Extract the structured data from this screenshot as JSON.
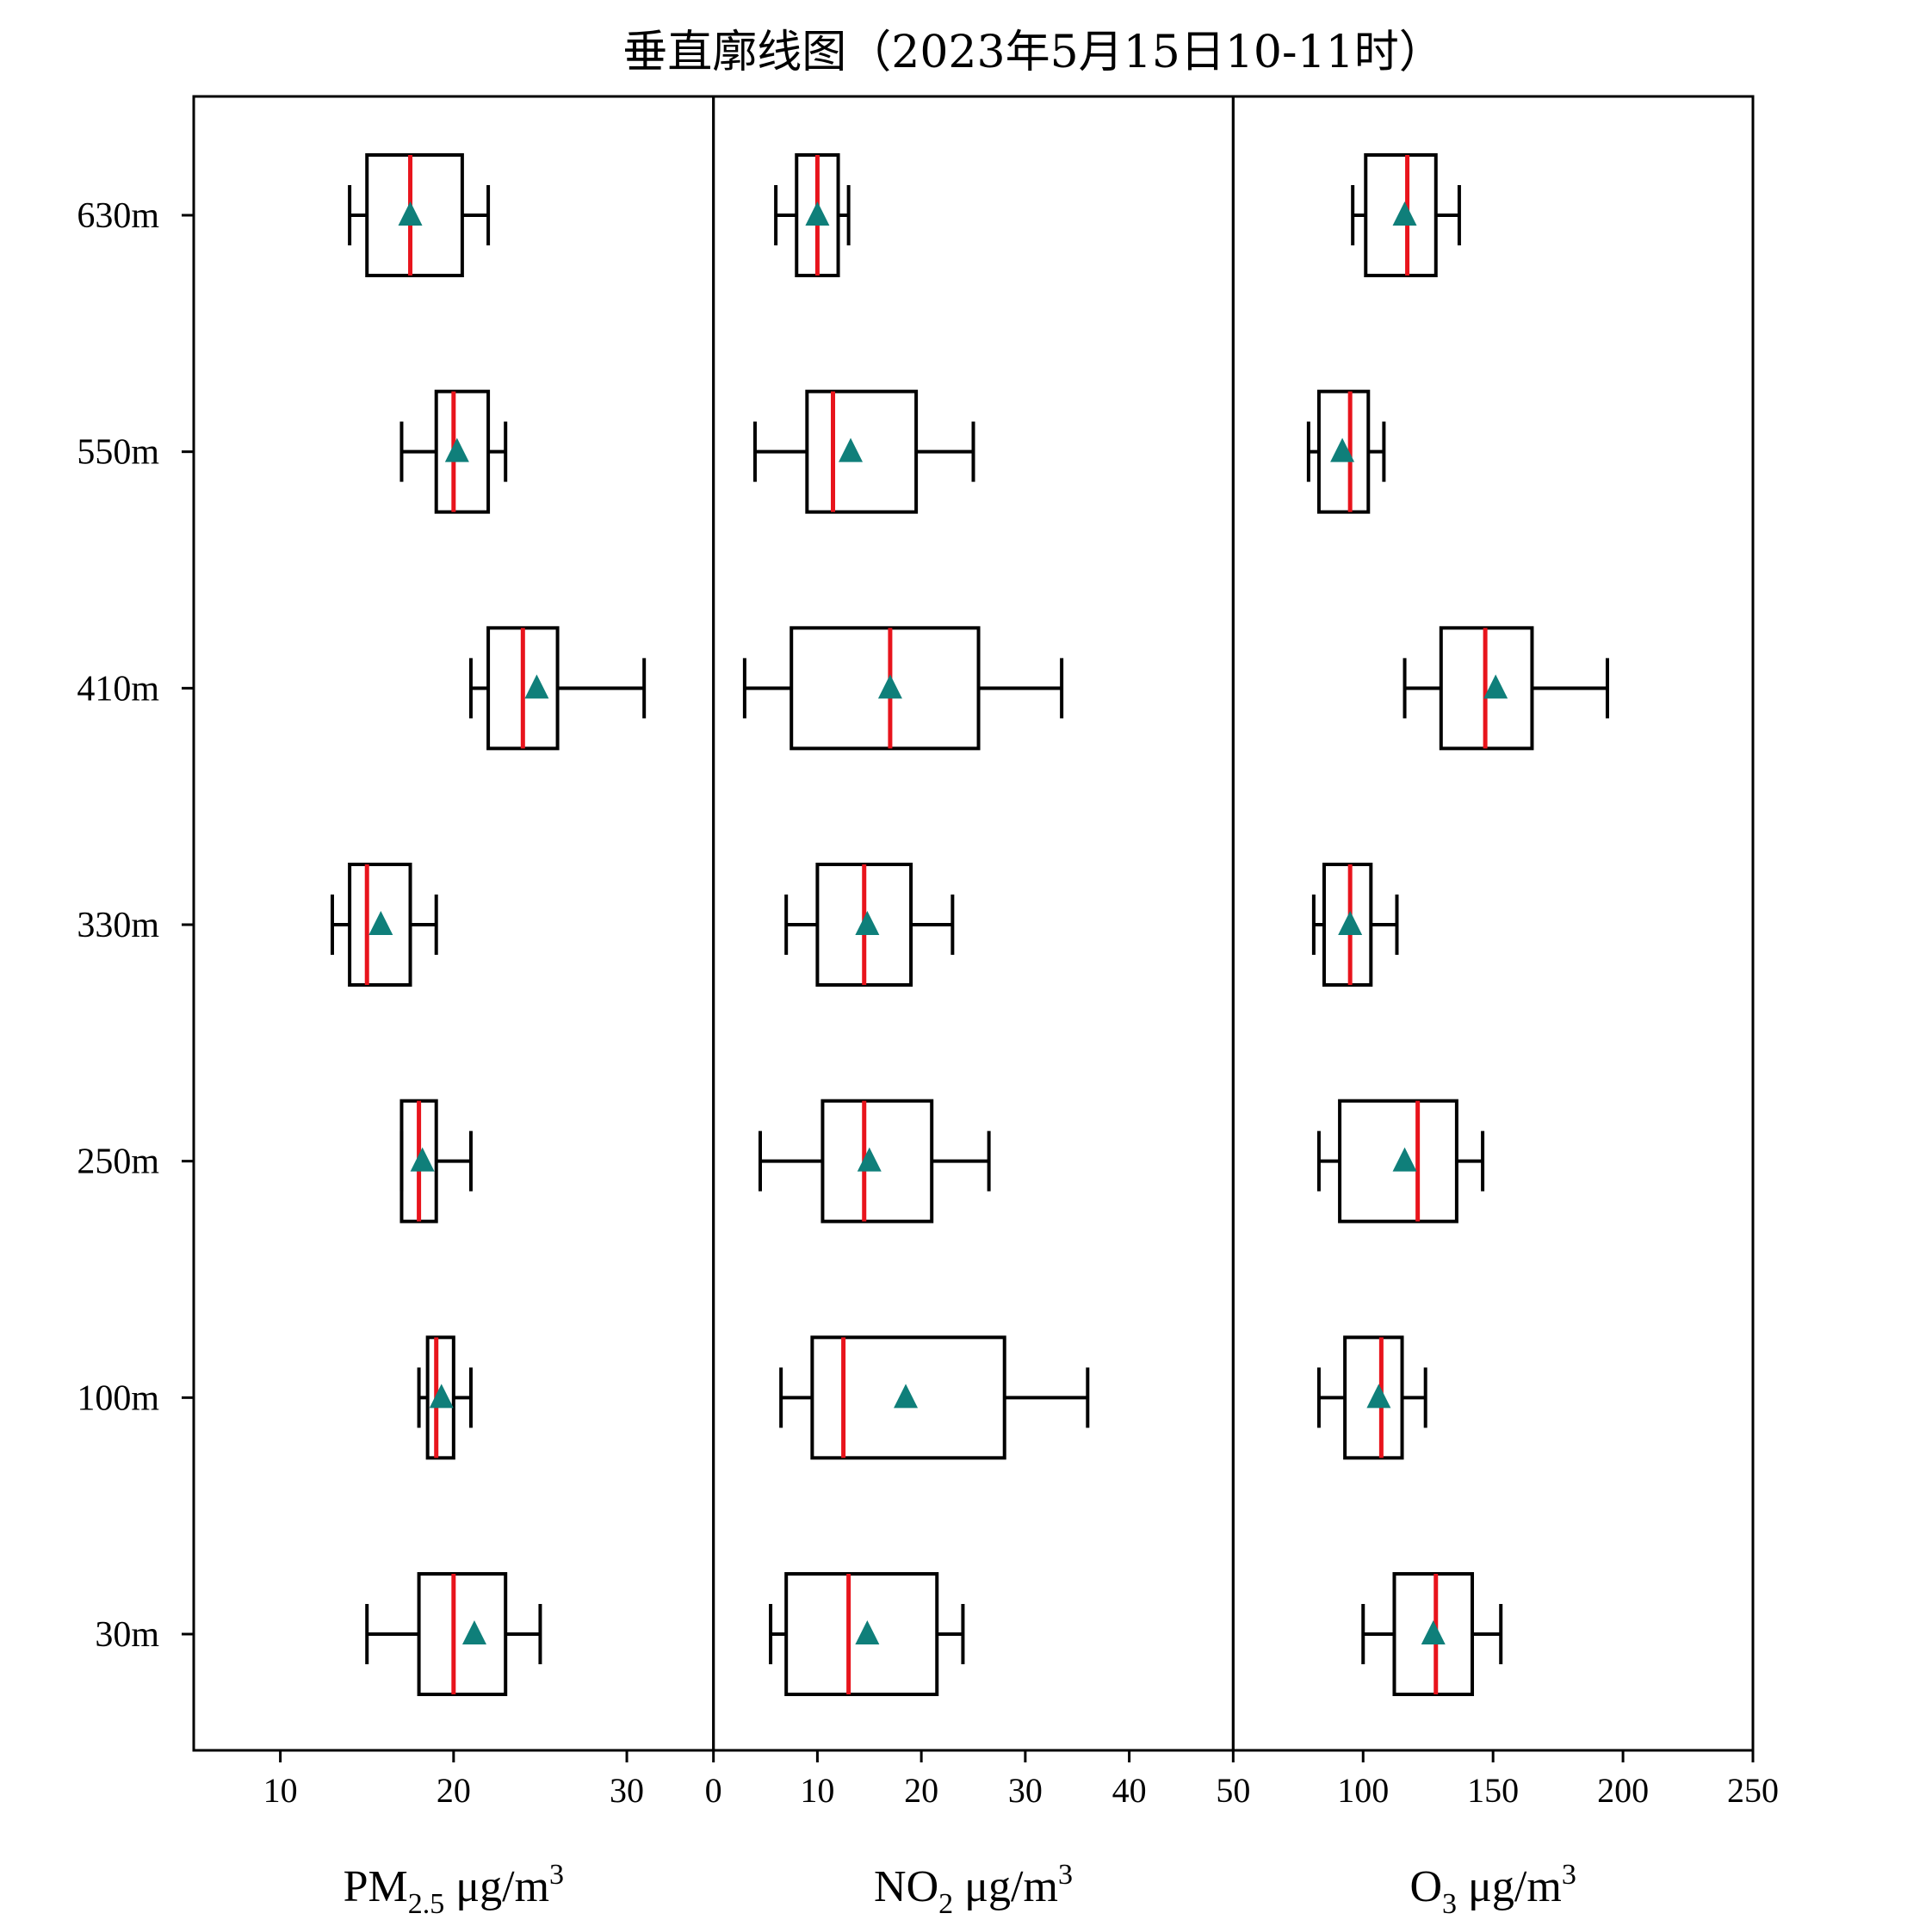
{
  "chart_data": {
    "type": "box",
    "orientation": "horizontal",
    "title": "垂直廓线图（2023年5月15日10-11时）",
    "categories": [
      "630m",
      "550m",
      "410m",
      "330m",
      "250m",
      "100m",
      "30m"
    ],
    "colors": {
      "box": "#000000",
      "median": "#e8141c",
      "mean_marker": "#0f7f7a"
    },
    "panels": [
      {
        "name": "PM2.5",
        "xlabel": {
          "base": "PM",
          "sub": "2.5",
          "sup": "",
          "unit_base": " μg/m",
          "unit_sup": "3"
        },
        "xlim": [
          5,
          35
        ],
        "xticks": [
          10,
          20,
          30
        ],
        "xtick_labels": [
          "10",
          "20",
          "30"
        ],
        "boxes": [
          {
            "category": "630m",
            "whisker_low": 14,
            "q1": 15,
            "median": 17.5,
            "q3": 20.5,
            "whisker_high": 22,
            "mean": 17.5
          },
          {
            "category": "550m",
            "whisker_low": 17,
            "q1": 19,
            "median": 20,
            "q3": 22,
            "whisker_high": 23,
            "mean": 20.2
          },
          {
            "category": "410m",
            "whisker_low": 21,
            "q1": 22,
            "median": 24,
            "q3": 26,
            "whisker_high": 31,
            "mean": 24.8
          },
          {
            "category": "330m",
            "whisker_low": 13,
            "q1": 14,
            "median": 15,
            "q3": 17.5,
            "whisker_high": 19,
            "mean": 15.8
          },
          {
            "category": "250m",
            "whisker_low": 17,
            "q1": 17,
            "median": 18,
            "q3": 19,
            "whisker_high": 21,
            "mean": 18.2
          },
          {
            "category": "100m",
            "whisker_low": 18,
            "q1": 18.5,
            "median": 19,
            "q3": 20,
            "whisker_high": 21,
            "mean": 19.3
          },
          {
            "category": "30m",
            "whisker_low": 15,
            "q1": 18,
            "median": 20,
            "q3": 23,
            "whisker_high": 25,
            "mean": 21.2
          }
        ]
      },
      {
        "name": "NO2",
        "xlabel": {
          "base": "NO",
          "sub": "2",
          "sup": "",
          "unit_base": " μg/m",
          "unit_sup": "3"
        },
        "xlim": [
          0,
          50
        ],
        "xticks": [
          0,
          10,
          20,
          30,
          40
        ],
        "xtick_labels": [
          "0",
          "10",
          "20",
          "30",
          "40"
        ],
        "boxes": [
          {
            "category": "630m",
            "whisker_low": 6,
            "q1": 8,
            "median": 10,
            "q3": 12,
            "whisker_high": 13,
            "mean": 10
          },
          {
            "category": "550m",
            "whisker_low": 4,
            "q1": 9,
            "median": 11.5,
            "q3": 19.5,
            "whisker_high": 25,
            "mean": 13.2
          },
          {
            "category": "410m",
            "whisker_low": 3,
            "q1": 7.5,
            "median": 17,
            "q3": 25.5,
            "whisker_high": 33.5,
            "mean": 17
          },
          {
            "category": "330m",
            "whisker_low": 7,
            "q1": 10,
            "median": 14.5,
            "q3": 19,
            "whisker_high": 23,
            "mean": 14.8
          },
          {
            "category": "250m",
            "whisker_low": 4.5,
            "q1": 10.5,
            "median": 14.5,
            "q3": 21,
            "whisker_high": 26.5,
            "mean": 15
          },
          {
            "category": "100m",
            "whisker_low": 6.5,
            "q1": 9.5,
            "median": 12.5,
            "q3": 28,
            "whisker_high": 36,
            "mean": 18.5
          },
          {
            "category": "30m",
            "whisker_low": 5.5,
            "q1": 7,
            "median": 13,
            "q3": 21.5,
            "whisker_high": 24,
            "mean": 14.8
          }
        ]
      },
      {
        "name": "O3",
        "xlabel": {
          "base": "O",
          "sub": "3",
          "sup": "",
          "unit_base": " μg/m",
          "unit_sup": "3"
        },
        "xlim": [
          50,
          250
        ],
        "xticks": [
          50,
          100,
          150,
          200,
          250
        ],
        "xtick_labels": [
          "50",
          "100",
          "150",
          "200",
          "250"
        ],
        "boxes": [
          {
            "category": "630m",
            "whisker_low": 96,
            "q1": 101,
            "median": 117,
            "q3": 128,
            "whisker_high": 137,
            "mean": 116
          },
          {
            "category": "550m",
            "whisker_low": 79,
            "q1": 83,
            "median": 95,
            "q3": 102,
            "whisker_high": 108,
            "mean": 92
          },
          {
            "category": "410m",
            "whisker_low": 116,
            "q1": 130,
            "median": 147,
            "q3": 165,
            "whisker_high": 194,
            "mean": 151
          },
          {
            "category": "330m",
            "whisker_low": 81,
            "q1": 85,
            "median": 95,
            "q3": 103,
            "whisker_high": 113,
            "mean": 95
          },
          {
            "category": "250m",
            "whisker_low": 83,
            "q1": 91,
            "median": 121,
            "q3": 136,
            "whisker_high": 146,
            "mean": 116
          },
          {
            "category": "100m",
            "whisker_low": 83,
            "q1": 93,
            "median": 107,
            "q3": 115,
            "whisker_high": 124,
            "mean": 106
          },
          {
            "category": "30m",
            "whisker_low": 100,
            "q1": 112,
            "median": 128,
            "q3": 142,
            "whisker_high": 153,
            "mean": 127
          }
        ]
      }
    ]
  }
}
